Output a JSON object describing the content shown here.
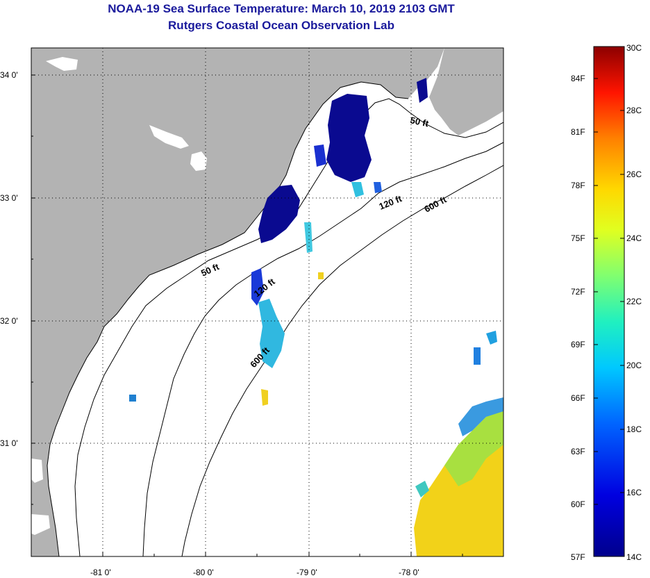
{
  "title": "NOAA-19 Sea Surface Temperature:  March 10, 2019 2103 GMT",
  "subtitle": "Rutgers Coastal Ocean Observation Lab",
  "lat_labels": [
    "34 0'",
    "33 0'",
    "32 0'",
    "31 0'"
  ],
  "lon_labels": [
    "-81 0'",
    "-80 0'",
    "-79 0'",
    "-78 0'"
  ],
  "depth_labels": [
    "50 ft",
    "120 ft",
    "600 ft",
    "50 ft",
    "120 ft",
    "600 ft"
  ],
  "colorbar": {
    "fahrenheit": [
      "84F",
      "81F",
      "78F",
      "75F",
      "72F",
      "69F",
      "66F",
      "63F",
      "60F",
      "57F"
    ],
    "celsius": [
      "30C",
      "28C",
      "26C",
      "24C",
      "22C",
      "20C",
      "18C",
      "16C",
      "14C"
    ]
  },
  "colors": {
    "land": "#b3b3b3",
    "title": "#1a1a9c",
    "cold": "#0a0a90",
    "warm": "#f2d219"
  }
}
